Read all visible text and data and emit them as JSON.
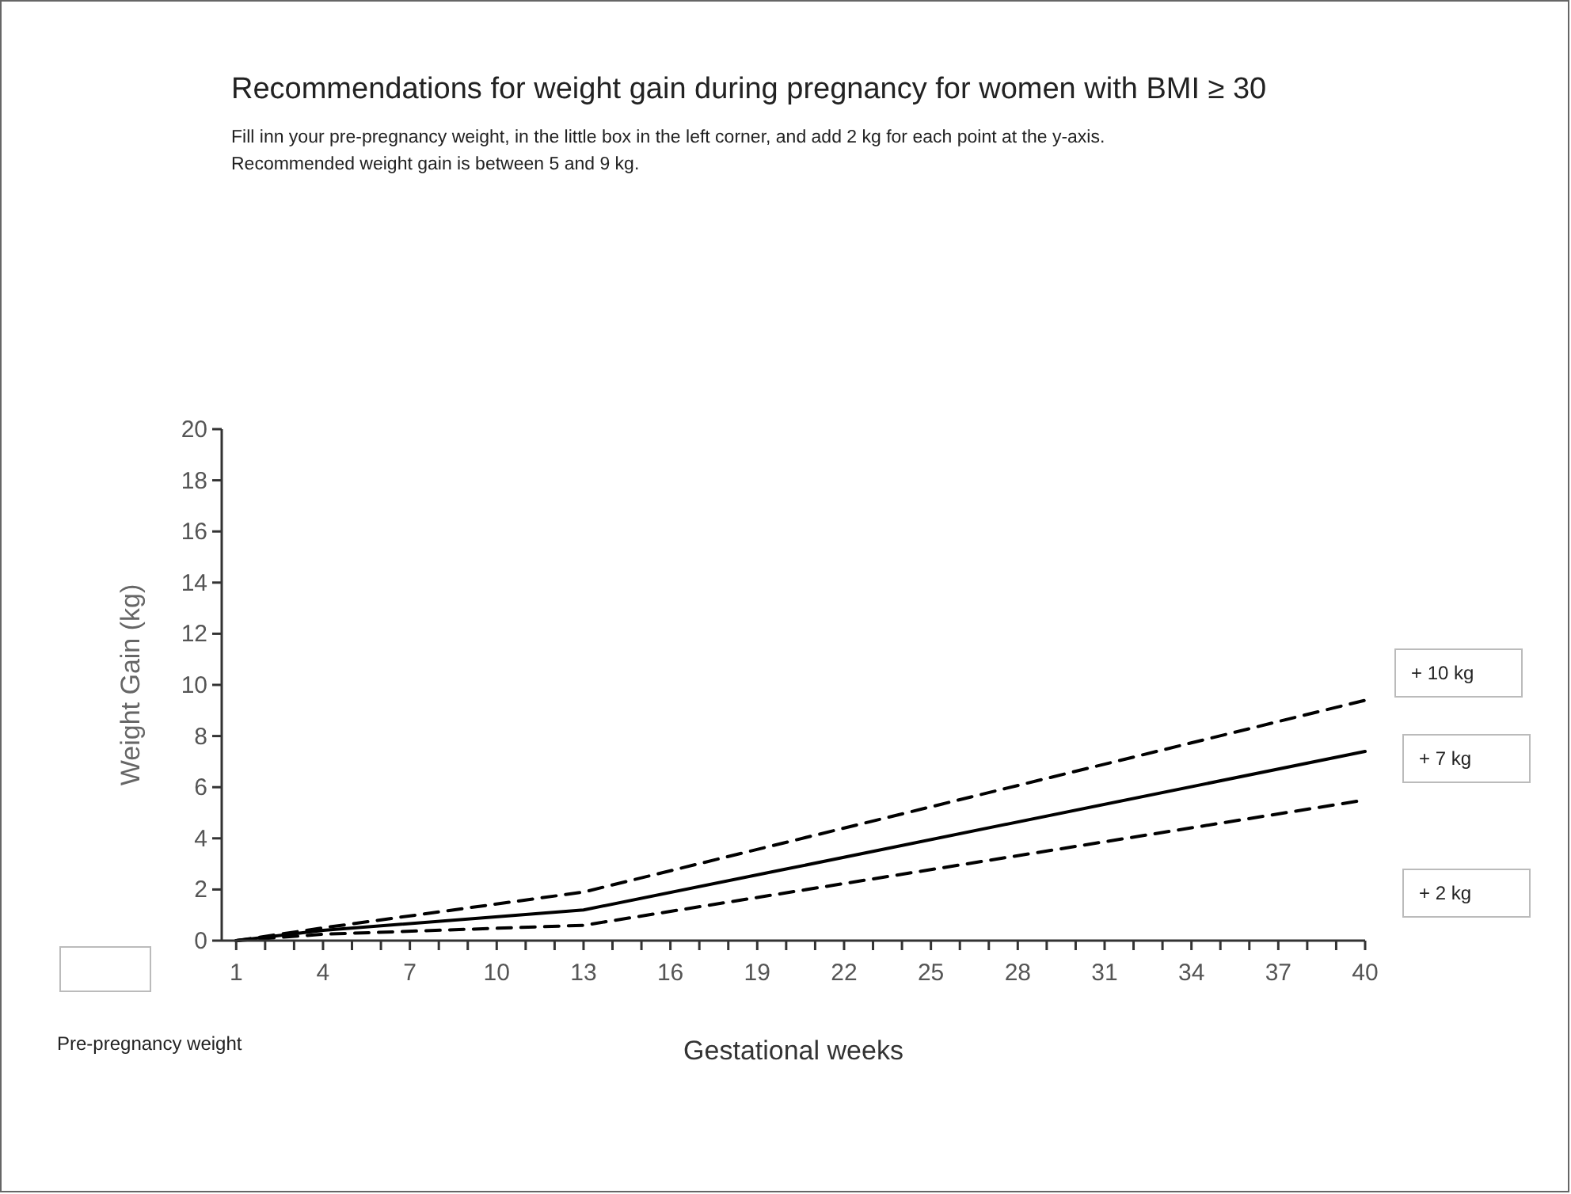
{
  "chart_data": {
    "type": "line",
    "title": "Recommendations for weight gain during pregnancy for women with BMI ≥ 30",
    "subtitle": "Fill inn your pre-pregnancy weight, in the little box in the left corner, and add 2 kg for each point at the y-axis.\nRecommended weight gain is between 5 and 9 kg.",
    "xlabel": "Gestational weeks",
    "ylabel": "Weight Gain (kg)",
    "annotations": [
      "+ 10 kg",
      "+ 7 kg",
      "+ 2 kg",
      "Pre-pregnancy weight"
    ],
    "series": [
      {
        "color": "#000000",
        "line_style": "dashed",
        "x": [
          1,
          4,
          13,
          40
        ],
        "values": [
          0,
          0.5,
          1.9,
          9.4
        ]
      },
      {
        "color": "#000000",
        "line_style": "solid",
        "x": [
          1,
          4,
          13,
          20,
          40
        ],
        "values": [
          0,
          0.4,
          1.2,
          2.8,
          7.4
        ]
      },
      {
        "color": "#000000",
        "line_style": "dashed",
        "x": [
          1,
          4,
          13,
          40
        ],
        "values": [
          0,
          0.25,
          0.6,
          5.5
        ]
      }
    ],
    "xlim": [
      0.5,
      40
    ],
    "ylim": [
      0,
      20
    ],
    "xticks": [
      1,
      {
        "value": 2,
        "label": null
      },
      {
        "value": 3,
        "label": null
      },
      4,
      {
        "value": 5,
        "label": null
      },
      {
        "value": 6,
        "label": null
      },
      7,
      {
        "value": 8,
        "label": null
      },
      {
        "value": 9,
        "label": null
      },
      10,
      {
        "value": 11,
        "label": null
      },
      {
        "value": 12,
        "label": null
      },
      13,
      {
        "value": 14,
        "label": null
      },
      {
        "value": 15,
        "label": null
      },
      16,
      {
        "value": 17,
        "label": null
      },
      {
        "value": 18,
        "label": null
      },
      19,
      {
        "value": 20,
        "label": null
      },
      {
        "value": 21,
        "label": null
      },
      22,
      {
        "value": 23,
        "label": null
      },
      {
        "value": 24,
        "label": null
      },
      25,
      {
        "value": 26,
        "label": null
      },
      {
        "value": 27,
        "label": null
      },
      28,
      {
        "value": 29,
        "label": null
      },
      {
        "value": 30,
        "label": null
      },
      31,
      {
        "value": 32,
        "label": null
      },
      {
        "value": 33,
        "label": null
      },
      34,
      {
        "value": 35,
        "label": null
      },
      {
        "value": 36,
        "label": null
      },
      37,
      {
        "value": 38,
        "label": null
      },
      {
        "value": 39,
        "label": null
      },
      40
    ],
    "yticks": [
      0,
      2,
      4,
      6,
      8,
      10,
      12,
      14,
      16,
      18,
      20
    ],
    "grid": false,
    "marker": "none"
  }
}
